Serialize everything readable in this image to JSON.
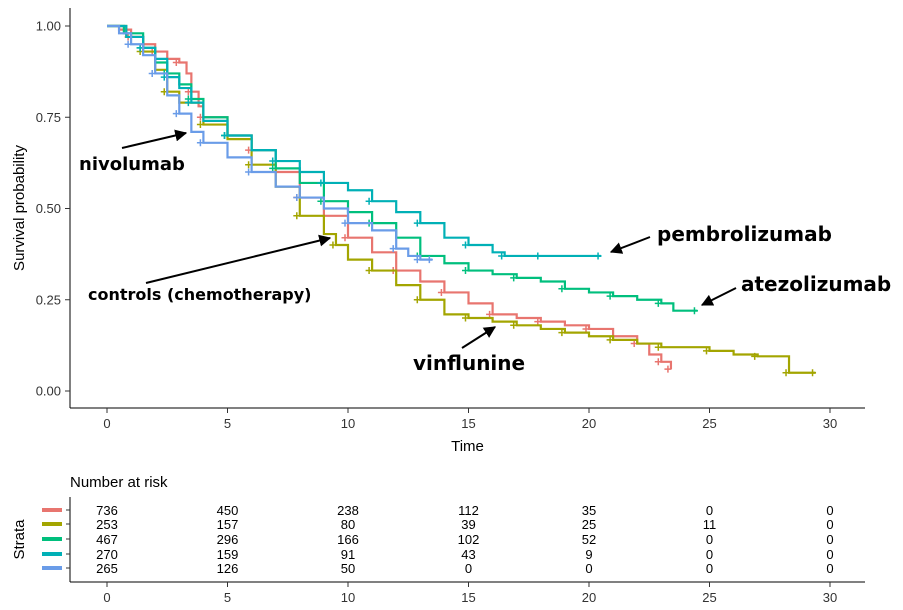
{
  "chart_data": {
    "type": "line",
    "subtype": "kaplan-meier",
    "xlabel": "Time",
    "ylabel": "Survival probability",
    "xlim": [
      0,
      30
    ],
    "ylim": [
      0,
      1
    ],
    "x_ticks": [
      "0",
      "5",
      "10",
      "15",
      "20",
      "25",
      "30"
    ],
    "y_ticks": [
      "0.00",
      "0.25",
      "0.50",
      "0.75",
      "1.00"
    ],
    "grid": false,
    "series": [
      {
        "color": "#E8756F",
        "points": [
          [
            0,
            1.0
          ],
          [
            0.5,
            0.99
          ],
          [
            1,
            0.97
          ],
          [
            1.5,
            0.95
          ],
          [
            2,
            0.93
          ],
          [
            2.5,
            0.91
          ],
          [
            3,
            0.9
          ],
          [
            3.3,
            0.87
          ],
          [
            3.5,
            0.82
          ],
          [
            3.8,
            0.78
          ],
          [
            4,
            0.75
          ],
          [
            5,
            0.7
          ],
          [
            6,
            0.66
          ],
          [
            7,
            0.6
          ],
          [
            8,
            0.53
          ],
          [
            9,
            0.48
          ],
          [
            10,
            0.42
          ],
          [
            11,
            0.38
          ],
          [
            12,
            0.33
          ],
          [
            13,
            0.3
          ],
          [
            14,
            0.27
          ],
          [
            15,
            0.24
          ],
          [
            16,
            0.21
          ],
          [
            17,
            0.2
          ],
          [
            18,
            0.19
          ],
          [
            19,
            0.18
          ],
          [
            20,
            0.17
          ],
          [
            21,
            0.15
          ],
          [
            22,
            0.13
          ],
          [
            22.5,
            0.1
          ],
          [
            23,
            0.08
          ],
          [
            23.4,
            0.06
          ]
        ]
      },
      {
        "color": "#A3A500",
        "points": [
          [
            0,
            1.0
          ],
          [
            0.8,
            0.97
          ],
          [
            1.5,
            0.93
          ],
          [
            2,
            0.88
          ],
          [
            2.5,
            0.82
          ],
          [
            3,
            0.79
          ],
          [
            4,
            0.73
          ],
          [
            5,
            0.69
          ],
          [
            6,
            0.62
          ],
          [
            7,
            0.56
          ],
          [
            8,
            0.48
          ],
          [
            9,
            0.43
          ],
          [
            9.5,
            0.4
          ],
          [
            10,
            0.36
          ],
          [
            11,
            0.33
          ],
          [
            12,
            0.29
          ],
          [
            13,
            0.25
          ],
          [
            14,
            0.21
          ],
          [
            15,
            0.2
          ],
          [
            16,
            0.19
          ],
          [
            17,
            0.18
          ],
          [
            18,
            0.17
          ],
          [
            19,
            0.16
          ],
          [
            20,
            0.15
          ],
          [
            21,
            0.14
          ],
          [
            22,
            0.13
          ],
          [
            23,
            0.12
          ],
          [
            24,
            0.12
          ],
          [
            25,
            0.11
          ],
          [
            26,
            0.1
          ],
          [
            27,
            0.095
          ],
          [
            28,
            0.095
          ],
          [
            28.3,
            0.05
          ],
          [
            29.4,
            0.05
          ]
        ]
      },
      {
        "color": "#00BF7D",
        "points": [
          [
            0,
            1.0
          ],
          [
            0.7,
            0.98
          ],
          [
            1.5,
            0.94
          ],
          [
            2,
            0.9
          ],
          [
            2.5,
            0.87
          ],
          [
            3,
            0.84
          ],
          [
            3.5,
            0.8
          ],
          [
            4,
            0.75
          ],
          [
            5,
            0.7
          ],
          [
            6,
            0.66
          ],
          [
            7,
            0.61
          ],
          [
            8,
            0.57
          ],
          [
            9,
            0.52
          ],
          [
            10,
            0.49
          ],
          [
            11,
            0.46
          ],
          [
            12,
            0.42
          ],
          [
            13,
            0.37
          ],
          [
            14,
            0.35
          ],
          [
            15,
            0.33
          ],
          [
            16,
            0.32
          ],
          [
            17,
            0.31
          ],
          [
            18,
            0.3
          ],
          [
            19,
            0.28
          ],
          [
            20,
            0.27
          ],
          [
            21,
            0.26
          ],
          [
            22,
            0.25
          ],
          [
            23,
            0.24
          ],
          [
            23.5,
            0.22
          ],
          [
            24.5,
            0.22
          ]
        ]
      },
      {
        "color": "#00B0B6",
        "points": [
          [
            0,
            1.0
          ],
          [
            0.8,
            0.97
          ],
          [
            1.5,
            0.94
          ],
          [
            2,
            0.91
          ],
          [
            2.5,
            0.86
          ],
          [
            3,
            0.83
          ],
          [
            3.5,
            0.79
          ],
          [
            4,
            0.74
          ],
          [
            5,
            0.7
          ],
          [
            6,
            0.66
          ],
          [
            7,
            0.63
          ],
          [
            8,
            0.6
          ],
          [
            9,
            0.57
          ],
          [
            10,
            0.55
          ],
          [
            11,
            0.52
          ],
          [
            12,
            0.49
          ],
          [
            13,
            0.46
          ],
          [
            14,
            0.42
          ],
          [
            15,
            0.4
          ],
          [
            16,
            0.38
          ],
          [
            16.5,
            0.37
          ],
          [
            17,
            0.37
          ],
          [
            18,
            0.37
          ],
          [
            19,
            0.37
          ],
          [
            20.5,
            0.37
          ]
        ]
      },
      {
        "color": "#6A9CE8",
        "points": [
          [
            0,
            1.0
          ],
          [
            0.5,
            0.98
          ],
          [
            1,
            0.95
          ],
          [
            1.5,
            0.92
          ],
          [
            2,
            0.87
          ],
          [
            2.5,
            0.81
          ],
          [
            3,
            0.76
          ],
          [
            3.5,
            0.71
          ],
          [
            4,
            0.68
          ],
          [
            5,
            0.64
          ],
          [
            6,
            0.6
          ],
          [
            7,
            0.56
          ],
          [
            8,
            0.53
          ],
          [
            9,
            0.5
          ],
          [
            10,
            0.46
          ],
          [
            11,
            0.44
          ],
          [
            12,
            0.39
          ],
          [
            12.5,
            0.37
          ],
          [
            13,
            0.36
          ],
          [
            13.5,
            0.36
          ]
        ]
      }
    ],
    "annotations": [
      {
        "text": "nivolumab"
      },
      {
        "text": "controls (chemotherapy)"
      },
      {
        "text": "vinflunine"
      },
      {
        "text": "pembrolizumab"
      },
      {
        "text": "atezolizumab"
      }
    ],
    "risk_table": {
      "title": "Number at risk",
      "strata_label": "Strata",
      "time_ticks": [
        "0",
        "5",
        "10",
        "15",
        "20",
        "25",
        "30"
      ],
      "rows": [
        {
          "color": "#E8756F",
          "values": [
            "736",
            "450",
            "238",
            "112",
            "35",
            "0",
            "0"
          ]
        },
        {
          "color": "#A3A500",
          "values": [
            "253",
            "157",
            "80",
            "39",
            "25",
            "11",
            "0"
          ]
        },
        {
          "color": "#00BF7D",
          "values": [
            "467",
            "296",
            "166",
            "102",
            "52",
            "0",
            "0"
          ]
        },
        {
          "color": "#00B0B6",
          "values": [
            "270",
            "159",
            "91",
            "43",
            "9",
            "0",
            "0"
          ]
        },
        {
          "color": "#6A9CE8",
          "values": [
            "265",
            "126",
            "50",
            "0",
            "0",
            "0",
            "0"
          ]
        }
      ]
    }
  }
}
